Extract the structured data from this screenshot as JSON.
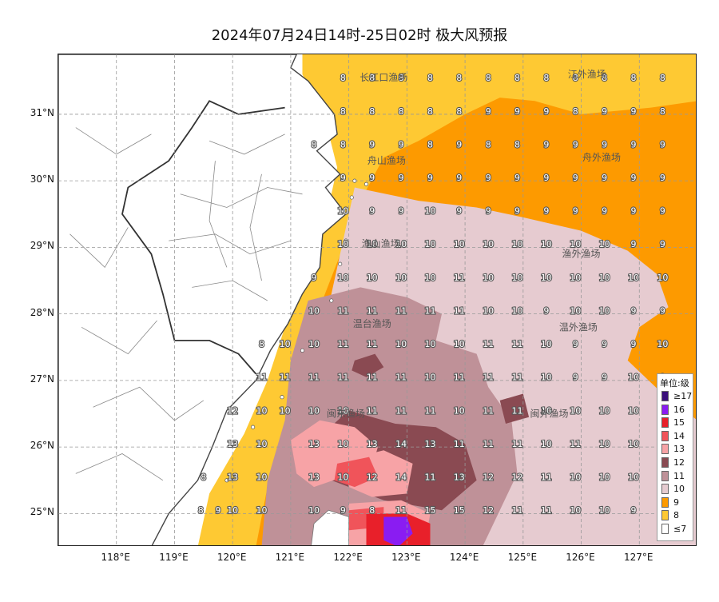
{
  "title": "2024年07月24日14时-25日02时 极大风预报",
  "map": {
    "lon_range": [
      117.0,
      128.0
    ],
    "lat_range": [
      24.5,
      31.9
    ],
    "lat_ticks": [
      {
        "value": 25,
        "label": "25°N"
      },
      {
        "value": 26,
        "label": "26°N"
      },
      {
        "value": 27,
        "label": "27°N"
      },
      {
        "value": 28,
        "label": "28°N"
      },
      {
        "value": 29,
        "label": "29°N"
      },
      {
        "value": 30,
        "label": "30°N"
      },
      {
        "value": 31,
        "label": "31°N"
      }
    ],
    "lon_ticks": [
      {
        "value": 118,
        "label": "118°E"
      },
      {
        "value": 119,
        "label": "119°E"
      },
      {
        "value": 120,
        "label": "120°E"
      },
      {
        "value": 121,
        "label": "121°E"
      },
      {
        "value": 122,
        "label": "122°E"
      },
      {
        "value": 123,
        "label": "123°E"
      },
      {
        "value": 124,
        "label": "124°E"
      },
      {
        "value": 125,
        "label": "125°E"
      },
      {
        "value": 126,
        "label": "126°E"
      },
      {
        "value": 127,
        "label": "127°E"
      }
    ],
    "grid": true,
    "fishing_grounds": [
      {
        "name": "长江口渔场",
        "lon": 122.6,
        "lat": 31.55
      },
      {
        "name": "江外渔场",
        "lon": 126.1,
        "lat": 31.6
      },
      {
        "name": "舟山渔场",
        "lon": 122.65,
        "lat": 30.3
      },
      {
        "name": "舟外渔场",
        "lon": 126.35,
        "lat": 30.35
      },
      {
        "name": "渔山渔场",
        "lon": 122.55,
        "lat": 29.05
      },
      {
        "name": "渔外渔场",
        "lon": 126.0,
        "lat": 28.9
      },
      {
        "name": "温台渔场",
        "lon": 122.4,
        "lat": 27.85
      },
      {
        "name": "温外渔场",
        "lon": 125.95,
        "lat": 27.8
      },
      {
        "name": "闽东渔场",
        "lon": 121.95,
        "lat": 26.5
      },
      {
        "name": "闽外渔场",
        "lon": 125.45,
        "lat": 26.5
      }
    ],
    "grid_lons": [
      121.4,
      121.9,
      122.4,
      122.9,
      123.4,
      123.9,
      124.4,
      124.9,
      125.4,
      125.9,
      126.4,
      126.9,
      127.4
    ],
    "grid_lats": [
      31.55,
      31.05,
      30.55,
      30.05,
      29.55,
      29.05,
      28.55,
      28.05,
      27.55,
      27.05,
      26.55,
      26.05,
      25.55,
      25.05
    ],
    "grid_values": [
      [
        null,
        8,
        8,
        8,
        8,
        8,
        8,
        8,
        8,
        8,
        8,
        8,
        8
      ],
      [
        null,
        8,
        8,
        8,
        8,
        8,
        9,
        9,
        9,
        8,
        9,
        9,
        8
      ],
      [
        8,
        8,
        9,
        9,
        8,
        9,
        8,
        8,
        9,
        9,
        9,
        9,
        9
      ],
      [
        null,
        9,
        9,
        9,
        9,
        9,
        9,
        9,
        9,
        9,
        9,
        9,
        9
      ],
      [
        null,
        10,
        9,
        9,
        10,
        9,
        9,
        9,
        9,
        9,
        9,
        9,
        9
      ],
      [
        null,
        10,
        10,
        10,
        10,
        10,
        10,
        10,
        10,
        10,
        10,
        9,
        9
      ],
      [
        9,
        10,
        10,
        10,
        10,
        11,
        10,
        10,
        10,
        10,
        10,
        10,
        10
      ],
      [
        10,
        11,
        11,
        11,
        11,
        11,
        10,
        10,
        9,
        10,
        10,
        9,
        9
      ],
      [
        10,
        11,
        11,
        10,
        10,
        10,
        11,
        11,
        10,
        9,
        9,
        9,
        10
      ],
      [
        11,
        11,
        11,
        11,
        10,
        11,
        11,
        11,
        10,
        9,
        9,
        10,
        9
      ],
      [
        10,
        10,
        11,
        11,
        11,
        10,
        11,
        11,
        10,
        10,
        10,
        10,
        10
      ],
      [
        13,
        10,
        13,
        14,
        13,
        11,
        11,
        11,
        10,
        11,
        10,
        10,
        10
      ],
      [
        13,
        10,
        12,
        14,
        11,
        13,
        12,
        12,
        11,
        10,
        10,
        10,
        10
      ],
      [
        10,
        9,
        8,
        11,
        15,
        15,
        12,
        11,
        11,
        10,
        10,
        9,
        9
      ]
    ],
    "west_values": [
      {
        "lon": 119.75,
        "lat": 25.05,
        "value": 9
      },
      {
        "lon": 119.45,
        "lat": 25.05,
        "value": 8
      },
      {
        "lon": 120.0,
        "lat": 25.05,
        "value": 10
      },
      {
        "lon": 120.5,
        "lat": 25.05,
        "value": 10
      },
      {
        "lon": 120.5,
        "lat": 25.55,
        "value": 10
      },
      {
        "lon": 119.5,
        "lat": 25.55,
        "value": 8
      },
      {
        "lon": 120.0,
        "lat": 25.55,
        "value": 13
      },
      {
        "lon": 120.0,
        "lat": 26.05,
        "value": 13
      },
      {
        "lon": 120.5,
        "lat": 26.05,
        "value": 10
      },
      {
        "lon": 120.0,
        "lat": 26.55,
        "value": 12
      },
      {
        "lon": 120.5,
        "lat": 26.55,
        "value": 10
      },
      {
        "lon": 120.9,
        "lat": 26.55,
        "value": 10
      },
      {
        "lon": 120.5,
        "lat": 27.05,
        "value": 11
      },
      {
        "lon": 120.9,
        "lat": 27.05,
        "value": 11
      },
      {
        "lon": 120.5,
        "lat": 27.55,
        "value": 8
      },
      {
        "lon": 120.9,
        "lat": 27.55,
        "value": 10
      }
    ]
  },
  "legend": {
    "title": "单位:级",
    "items": [
      {
        "label": "≥17",
        "color": "#3a0f7a"
      },
      {
        "label": "16",
        "color": "#8a1cf2"
      },
      {
        "label": "15",
        "color": "#e8202a"
      },
      {
        "label": "14",
        "color": "#f0545a"
      },
      {
        "label": "13",
        "color": "#f7a3a6"
      },
      {
        "label": "12",
        "color": "#8a4a52"
      },
      {
        "label": "11",
        "color": "#bf9198"
      },
      {
        "label": "10",
        "color": "#e6cbd0"
      },
      {
        "label": "9",
        "color": "#fd9a00"
      },
      {
        "label": "8",
        "color": "#fec933"
      },
      {
        "label": "≤7",
        "color": "#ffffff"
      }
    ]
  }
}
